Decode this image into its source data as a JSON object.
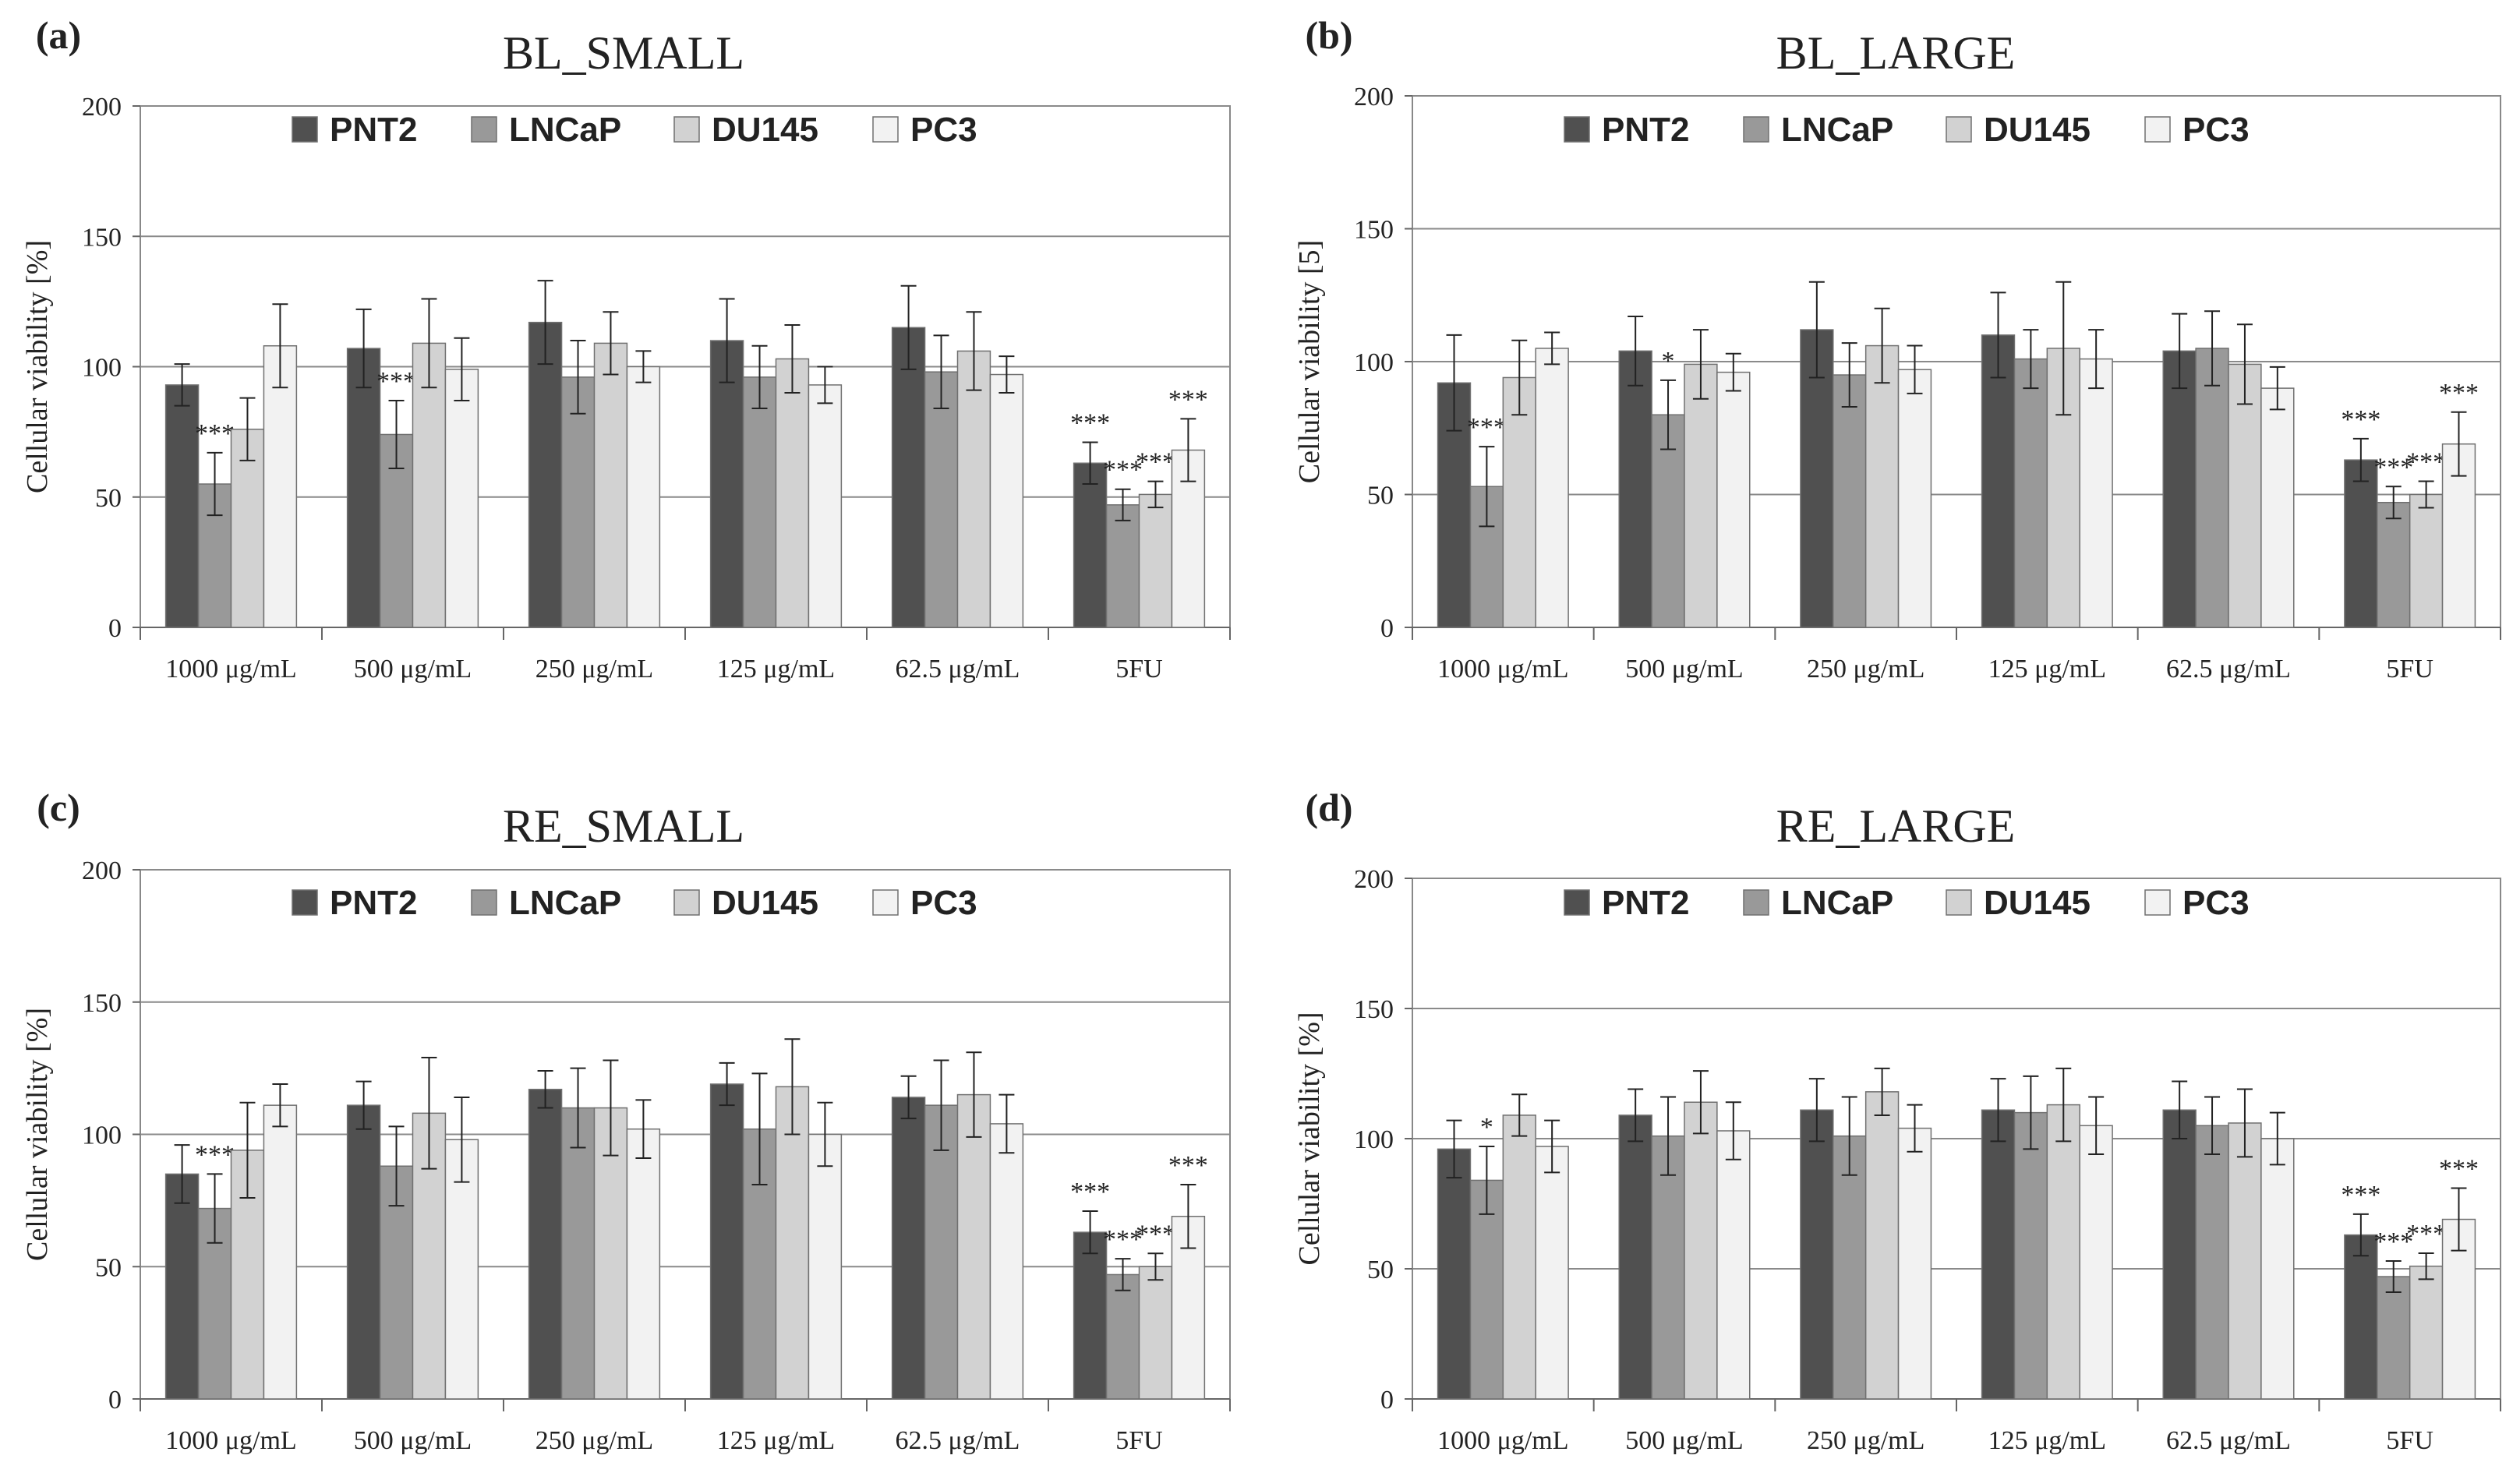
{
  "figure": {
    "panels": [
      "(a)",
      "(b)",
      "(c)",
      "(d)"
    ]
  },
  "chart_data": [
    {
      "type": "bar",
      "panel": "(a)",
      "title": "BL_SMALL",
      "ylabel": "Cellular viability [%]",
      "xlabel": "",
      "ylim": [
        0,
        200
      ],
      "yticks": [
        0,
        50,
        100,
        150,
        200
      ],
      "grid": true,
      "legend_position": "top",
      "categories": [
        "1000 μg/mL",
        "500 μg/mL",
        "250 μg/mL",
        "125 μg/mL",
        "62.5 μg/mL",
        "5FU"
      ],
      "series": [
        {
          "name": "PNT2",
          "color": "#505050",
          "values": [
            93,
            107,
            117,
            110,
            115,
            63
          ],
          "errors": [
            8,
            15,
            16,
            16,
            16,
            8
          ],
          "significance": [
            "",
            "",
            "",
            "",
            "",
            "***"
          ]
        },
        {
          "name": "LNCaP",
          "color": "#999999",
          "values": [
            55,
            74,
            96,
            96,
            98,
            47
          ],
          "errors": [
            12,
            13,
            14,
            12,
            14,
            6
          ],
          "significance": [
            "***",
            "***",
            "",
            "",
            "",
            "***"
          ]
        },
        {
          "name": "DU145",
          "color": "#d2d2d2",
          "values": [
            76,
            109,
            109,
            103,
            106,
            51
          ],
          "errors": [
            12,
            17,
            12,
            13,
            15,
            5
          ],
          "significance": [
            "",
            "",
            "",
            "",
            "",
            "***"
          ]
        },
        {
          "name": "PC3",
          "color": "#f2f2f2",
          "values": [
            108,
            99,
            100,
            93,
            97,
            68
          ],
          "errors": [
            16,
            12,
            6,
            7,
            7,
            12
          ],
          "significance": [
            "",
            "",
            "",
            "",
            "",
            "***"
          ]
        }
      ]
    },
    {
      "type": "bar",
      "panel": "(b)",
      "title": "BL_LARGE",
      "ylabel": "Cellular viability [5]",
      "xlabel": "",
      "ylim": [
        0,
        200
      ],
      "yticks": [
        0,
        50,
        100,
        150,
        200
      ],
      "grid": true,
      "legend_position": "top",
      "categories": [
        "1000 μg/mL",
        "500 μg/mL",
        "250 μg/mL",
        "125 μg/mL",
        "62.5 μg/mL",
        "5FU"
      ],
      "series": [
        {
          "name": "PNT2",
          "color": "#505050",
          "values": [
            92,
            104,
            112,
            110,
            104,
            63
          ],
          "errors": [
            18,
            13,
            18,
            16,
            14,
            8
          ],
          "significance": [
            "",
            "",
            "",
            "",
            "",
            "***"
          ]
        },
        {
          "name": "LNCaP",
          "color": "#999999",
          "values": [
            53,
            80,
            95,
            101,
            105,
            47
          ],
          "errors": [
            15,
            13,
            12,
            11,
            14,
            6
          ],
          "significance": [
            "***",
            "*",
            "",
            "",
            "",
            "***"
          ]
        },
        {
          "name": "DU145",
          "color": "#d2d2d2",
          "values": [
            94,
            99,
            106,
            105,
            99,
            50
          ],
          "errors": [
            14,
            13,
            14,
            25,
            15,
            5
          ],
          "significance": [
            "",
            "",
            "",
            "",
            "",
            "***"
          ]
        },
        {
          "name": "PC3",
          "color": "#f2f2f2",
          "values": [
            105,
            96,
            97,
            101,
            90,
            69
          ],
          "errors": [
            6,
            7,
            9,
            11,
            8,
            12
          ],
          "significance": [
            "",
            "",
            "",
            "",
            "",
            "***"
          ]
        }
      ]
    },
    {
      "type": "bar",
      "panel": "(c)",
      "title": "RE_SMALL",
      "ylabel": "Cellular viability [%]",
      "xlabel": "",
      "ylim": [
        0,
        200
      ],
      "yticks": [
        0,
        50,
        100,
        150,
        200
      ],
      "grid": true,
      "legend_position": "top",
      "categories": [
        "1000 μg/mL",
        "500 μg/mL",
        "250 μg/mL",
        "125 μg/mL",
        "62.5 μg/mL",
        "5FU"
      ],
      "series": [
        {
          "name": "PNT2",
          "color": "#505050",
          "values": [
            85,
            111,
            117,
            119,
            114,
            63
          ],
          "errors": [
            11,
            9,
            7,
            8,
            8,
            8
          ],
          "significance": [
            "",
            "",
            "",
            "",
            "",
            "***"
          ]
        },
        {
          "name": "LNCaP",
          "color": "#999999",
          "values": [
            72,
            88,
            110,
            102,
            111,
            47
          ],
          "errors": [
            13,
            15,
            15,
            21,
            17,
            6
          ],
          "significance": [
            "***",
            "",
            "",
            "",
            "",
            "***"
          ]
        },
        {
          "name": "DU145",
          "color": "#d2d2d2",
          "values": [
            94,
            108,
            110,
            118,
            115,
            50
          ],
          "errors": [
            18,
            21,
            18,
            18,
            16,
            5
          ],
          "significance": [
            "",
            "",
            "",
            "",
            "",
            "***"
          ]
        },
        {
          "name": "PC3",
          "color": "#f2f2f2",
          "values": [
            111,
            98,
            102,
            100,
            104,
            69
          ],
          "errors": [
            8,
            16,
            11,
            12,
            11,
            12
          ],
          "significance": [
            "",
            "",
            "",
            "",
            "",
            "***"
          ]
        }
      ]
    },
    {
      "type": "bar",
      "panel": "(d)",
      "title": "RE_LARGE",
      "ylabel": "Cellular viability [%]",
      "xlabel": "",
      "ylim": [
        0,
        200
      ],
      "yticks": [
        0,
        50,
        100,
        150,
        200
      ],
      "grid": true,
      "legend_position": "top",
      "categories": [
        "1000 μg/mL",
        "500 μg/mL",
        "250 μg/mL",
        "125 μg/mL",
        "62.5 μg/mL",
        "5FU"
      ],
      "series": [
        {
          "name": "PNT2",
          "color": "#505050",
          "values": [
            96,
            109,
            111,
            111,
            111,
            63
          ],
          "errors": [
            11,
            10,
            12,
            12,
            11,
            8
          ],
          "significance": [
            "",
            "",
            "",
            "",
            "",
            "***"
          ]
        },
        {
          "name": "LNCaP",
          "color": "#999999",
          "values": [
            84,
            101,
            101,
            110,
            105,
            47
          ],
          "errors": [
            13,
            15,
            15,
            14,
            11,
            6
          ],
          "significance": [
            "*",
            "",
            "",
            "",
            "",
            "***"
          ]
        },
        {
          "name": "DU145",
          "color": "#d2d2d2",
          "values": [
            109,
            114,
            118,
            113,
            106,
            51
          ],
          "errors": [
            8,
            12,
            9,
            14,
            13,
            5
          ],
          "significance": [
            "",
            "",
            "",
            "",
            "",
            "***"
          ]
        },
        {
          "name": "PC3",
          "color": "#f2f2f2",
          "values": [
            97,
            103,
            104,
            105,
            100,
            69
          ],
          "errors": [
            10,
            11,
            9,
            11,
            10,
            12
          ],
          "significance": [
            "",
            "",
            "",
            "",
            "",
            "***"
          ]
        }
      ]
    }
  ]
}
